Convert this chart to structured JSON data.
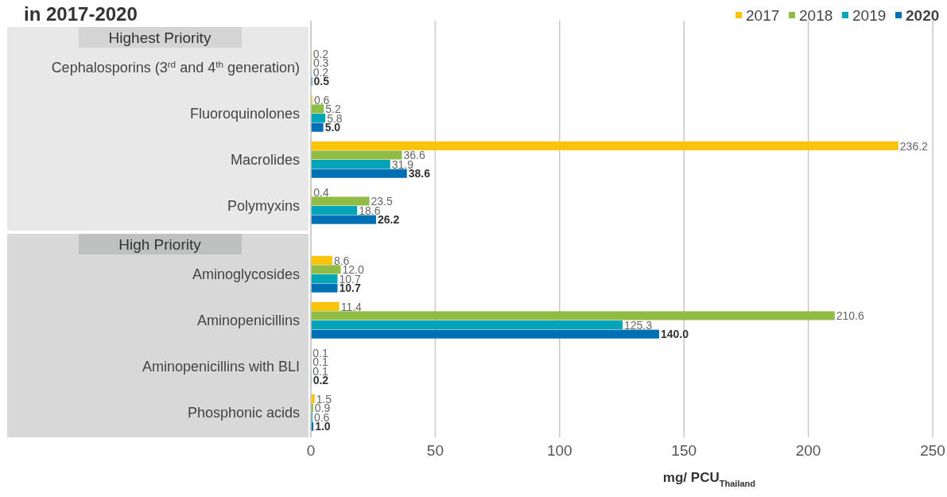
{
  "chart_data": {
    "type": "bar",
    "orientation": "horizontal",
    "title": "in 2017-2020",
    "xlabel": "mg/ PCU$_{Thailand}$",
    "categories": [
      "Cephalosporins (3$^{rd}$ and 4$^{th}$ generation)",
      "Fluoroquinolones",
      "Macrolides",
      "Polymyxins",
      "Aminoglycosides",
      "Aminopenicillins",
      "Aminopenicillins with BLI",
      "Phosphonic acids"
    ],
    "series": [
      {
        "name": "2017",
        "color": "#fcc30b",
        "values": [
          0.2,
          0.6,
          236.2,
          0.4,
          8.6,
          11.4,
          0.1,
          1.5
        ],
        "value_labels": [
          "0.2",
          "0.6",
          "236.2",
          "0.4",
          "8.6",
          "11.4",
          "0.1",
          "1.5"
        ]
      },
      {
        "name": "2018",
        "color": "#8fbc45",
        "values": [
          0.3,
          5.2,
          36.6,
          23.5,
          12.0,
          210.6,
          0.1,
          0.9
        ],
        "value_labels": [
          "0.3",
          "5.2",
          "36.6",
          "23.5",
          "12.0",
          "210.6",
          "0.1",
          "0.9"
        ]
      },
      {
        "name": "2019",
        "color": "#00a6b8",
        "values": [
          0.2,
          5.8,
          31.9,
          18.6,
          10.7,
          125.3,
          0.1,
          0.6
        ],
        "value_labels": [
          "0.2",
          "5.8",
          "31.9",
          "18.6",
          "10.7",
          "125.3",
          "0.1",
          "0.6"
        ]
      },
      {
        "name": "2020",
        "color": "#0070b4",
        "values": [
          0.5,
          5.0,
          38.6,
          26.2,
          10.7,
          140.0,
          0.2,
          1.0
        ],
        "value_labels": [
          "0.5",
          "5.0",
          "38.6",
          "26.2",
          "10.7",
          "140.0",
          "0.2",
          "1.0"
        ]
      }
    ],
    "xlim": [
      0,
      250
    ],
    "xticks": [
      0,
      50,
      100,
      150,
      200,
      250
    ],
    "grid": "x",
    "legend": "top right",
    "annotations": [
      "Highest Priority",
      "High Priority"
    ]
  }
}
